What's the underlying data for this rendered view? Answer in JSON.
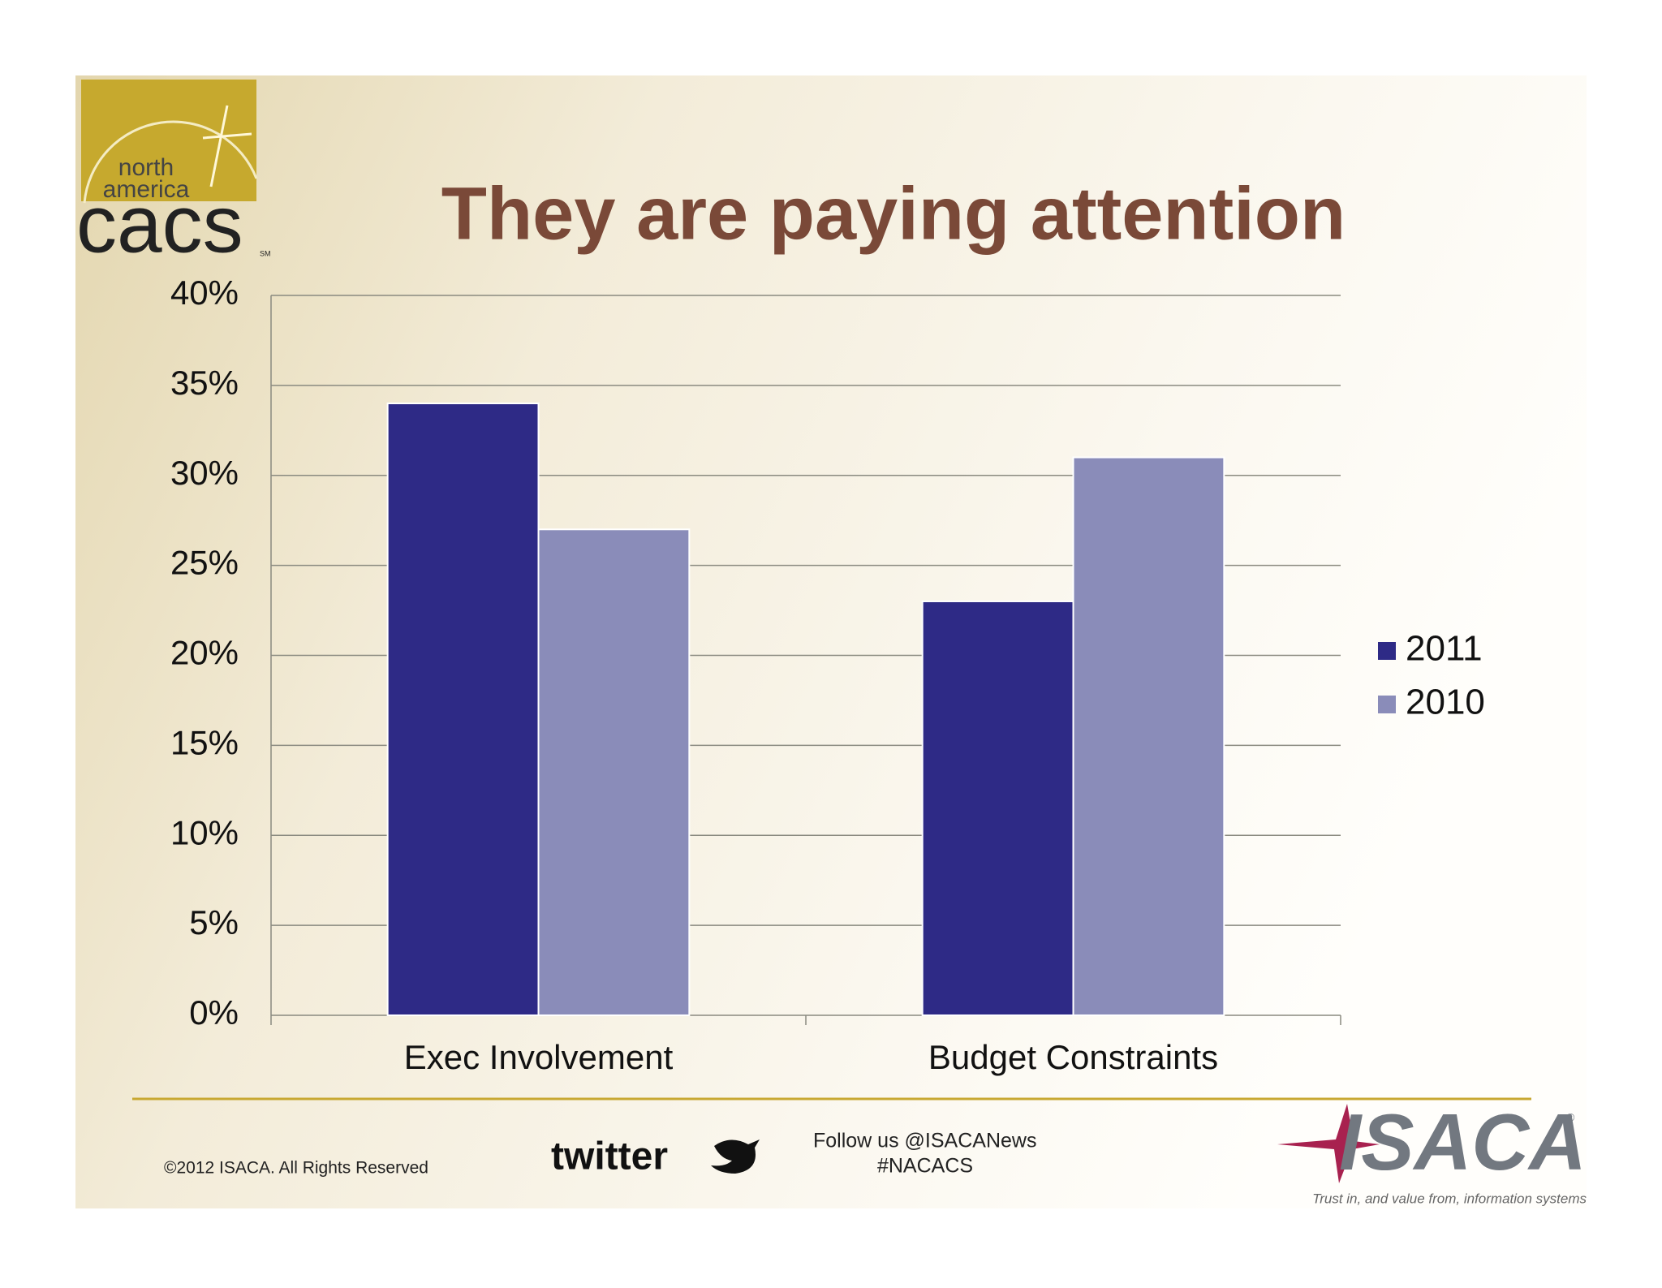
{
  "chart_data": {
    "type": "bar",
    "title": "They are paying attention",
    "categories": [
      "Exec Involvement",
      "Budget Constraints"
    ],
    "series": [
      {
        "name": "2011",
        "color": "#2e2a86",
        "values": [
          34,
          23
        ]
      },
      {
        "name": "2010",
        "color": "#8a8cb9",
        "values": [
          27,
          31
        ]
      }
    ],
    "ylim": [
      0,
      40
    ],
    "yticks": [
      {
        "value": 0,
        "label": "0%"
      },
      {
        "value": 5,
        "label": "5%"
      },
      {
        "value": 10,
        "label": "10%"
      },
      {
        "value": 15,
        "label": "15%"
      },
      {
        "value": 20,
        "label": "20%"
      },
      {
        "value": 25,
        "label": "25%"
      },
      {
        "value": 30,
        "label": "30%"
      },
      {
        "value": 35,
        "label": "35%"
      },
      {
        "value": 40,
        "label": "40%"
      }
    ],
    "grid": true,
    "legend": "right"
  },
  "slide": {
    "logo_line1": "north",
    "logo_line2": "america",
    "logo_word": "cacs",
    "logo_mark": "SM",
    "copyright": "©2012 ISACA. All Rights Reserved",
    "twitter": "twitter",
    "follow": "Follow us @ISACANews",
    "hashtag": "#NACACS",
    "brand": "ISACA",
    "brand_mark": "®",
    "tagline": "Trust in, and value from, information systems"
  }
}
